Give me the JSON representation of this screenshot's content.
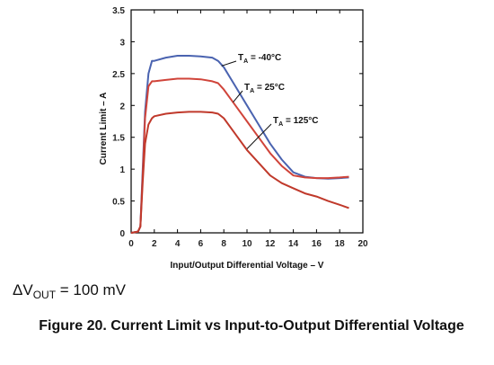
{
  "chart_data": {
    "type": "line",
    "xlabel": "Input/Output Differential Voltage – V",
    "ylabel": "Current Limit – A",
    "xlim": [
      0,
      20
    ],
    "ylim": [
      0,
      3.5
    ],
    "xticks": [
      0,
      2,
      4,
      6,
      8,
      10,
      12,
      14,
      16,
      18,
      20
    ],
    "yticks": [
      0,
      0.5,
      1,
      1.5,
      2,
      2.5,
      3,
      3.5
    ],
    "grid": false,
    "series": [
      {
        "name": "-40°C",
        "color": "#4a63b0",
        "points": [
          [
            0,
            0
          ],
          [
            0.6,
            0.02
          ],
          [
            0.8,
            0.1
          ],
          [
            1.0,
            1.0
          ],
          [
            1.2,
            1.9
          ],
          [
            1.5,
            2.5
          ],
          [
            1.8,
            2.7
          ],
          [
            2,
            2.7
          ],
          [
            3,
            2.75
          ],
          [
            4,
            2.78
          ],
          [
            5,
            2.78
          ],
          [
            6,
            2.77
          ],
          [
            7,
            2.75
          ],
          [
            7.5,
            2.7
          ],
          [
            8,
            2.6
          ],
          [
            9,
            2.3
          ],
          [
            10,
            2.0
          ],
          [
            11,
            1.7
          ],
          [
            12,
            1.4
          ],
          [
            13,
            1.15
          ],
          [
            14,
            0.95
          ],
          [
            15,
            0.88
          ],
          [
            16,
            0.86
          ],
          [
            17,
            0.85
          ],
          [
            18,
            0.86
          ],
          [
            18.8,
            0.87
          ]
        ]
      },
      {
        "name": "25°C",
        "color": "#d0443a",
        "points": [
          [
            0,
            0
          ],
          [
            0.6,
            0.02
          ],
          [
            0.8,
            0.1
          ],
          [
            1.0,
            0.9
          ],
          [
            1.2,
            1.8
          ],
          [
            1.5,
            2.3
          ],
          [
            1.8,
            2.38
          ],
          [
            2,
            2.38
          ],
          [
            3,
            2.4
          ],
          [
            4,
            2.42
          ],
          [
            5,
            2.42
          ],
          [
            6,
            2.41
          ],
          [
            7,
            2.38
          ],
          [
            7.5,
            2.35
          ],
          [
            8,
            2.25
          ],
          [
            9,
            2.0
          ],
          [
            10,
            1.75
          ],
          [
            11,
            1.5
          ],
          [
            12,
            1.25
          ],
          [
            13,
            1.05
          ],
          [
            14,
            0.9
          ],
          [
            15,
            0.87
          ],
          [
            16,
            0.86
          ],
          [
            17,
            0.86
          ],
          [
            18,
            0.87
          ],
          [
            18.8,
            0.88
          ]
        ]
      },
      {
        "name": "125°C",
        "color": "#c0392b",
        "points": [
          [
            0,
            0
          ],
          [
            0.6,
            0.02
          ],
          [
            0.8,
            0.1
          ],
          [
            1.0,
            0.8
          ],
          [
            1.2,
            1.4
          ],
          [
            1.5,
            1.7
          ],
          [
            1.8,
            1.8
          ],
          [
            2,
            1.83
          ],
          [
            3,
            1.87
          ],
          [
            4,
            1.89
          ],
          [
            5,
            1.9
          ],
          [
            6,
            1.9
          ],
          [
            7,
            1.89
          ],
          [
            7.5,
            1.87
          ],
          [
            8,
            1.8
          ],
          [
            9,
            1.55
          ],
          [
            10,
            1.3
          ],
          [
            11,
            1.1
          ],
          [
            12,
            0.9
          ],
          [
            13,
            0.78
          ],
          [
            14,
            0.7
          ],
          [
            15,
            0.62
          ],
          [
            16,
            0.57
          ],
          [
            17,
            0.5
          ],
          [
            18,
            0.44
          ],
          [
            18.8,
            0.39
          ]
        ]
      }
    ],
    "annotations": [
      {
        "prefix": "T",
        "sub": "A",
        "text": " = -40°C"
      },
      {
        "prefix": "T",
        "sub": "A",
        "text": " = 25°C"
      },
      {
        "prefix": "T",
        "sub": "A",
        "text": " = 125°C"
      }
    ]
  },
  "note": {
    "prefix": "ΔV",
    "sub": "OUT",
    "suffix": " = 100 mV"
  },
  "caption": "Figure 20. Current Limit vs Input-to-Output Differential Voltage"
}
